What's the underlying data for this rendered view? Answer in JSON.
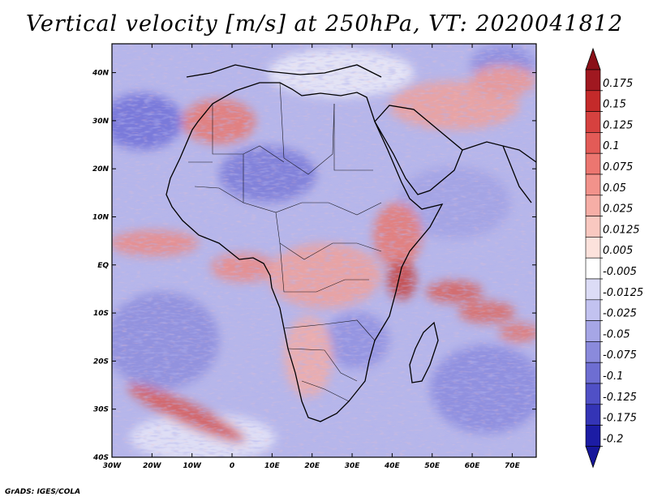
{
  "title": "Vertical velocity [m/s] at 250hPa, VT: 2020041812",
  "footer": "GrADS: IGES/COLA",
  "map": {
    "lon_range": [
      -30,
      76
    ],
    "lat_range": [
      -40,
      46
    ],
    "lon_ticks": [
      "30W",
      "20W",
      "10W",
      "0",
      "10E",
      "20E",
      "30E",
      "40E",
      "50E",
      "60E",
      "70E"
    ],
    "lon_tick_values": [
      -30,
      -20,
      -10,
      0,
      10,
      20,
      30,
      40,
      50,
      60,
      70
    ],
    "lat_ticks": [
      "40N",
      "30N",
      "20N",
      "10N",
      "EQ",
      "10S",
      "20S",
      "30S",
      "40S"
    ],
    "lat_tick_values": [
      40,
      30,
      20,
      10,
      0,
      -10,
      -20,
      -30,
      -40
    ]
  },
  "colorbar": {
    "labels": [
      "0.175",
      "0.15",
      "0.125",
      "0.1",
      "0.075",
      "0.05",
      "0.025",
      "0.0125",
      "0.005",
      "-0.005",
      "-0.0125",
      "-0.025",
      "-0.05",
      "-0.075",
      "-0.1",
      "-0.125",
      "-0.175",
      "-0.2"
    ],
    "colors": [
      "#a01820",
      "#c42a2a",
      "#d6413f",
      "#e35b57",
      "#ec7670",
      "#f2928b",
      "#f6aea6",
      "#f9c8c0",
      "#fce2dc",
      "#ffffff",
      "#dcdcf6",
      "#c2c2f0",
      "#a6a6e6",
      "#8a8adc",
      "#6e6ed2",
      "#5050c6",
      "#3434b6",
      "#1c1ca4"
    ],
    "top_arrow_color": "#8a1018",
    "bottom_arrow_color": "#16169a"
  }
}
